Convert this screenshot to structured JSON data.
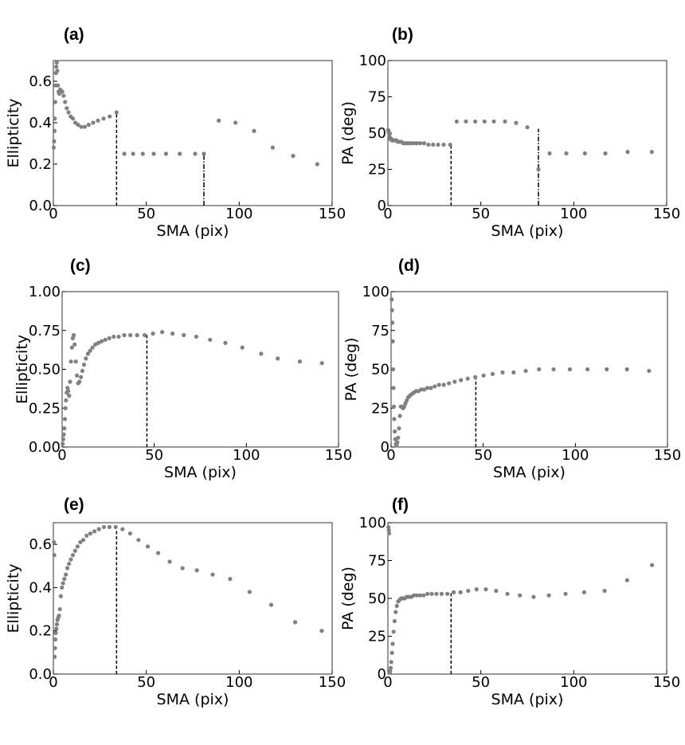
{
  "figure": {
    "title": ""
  },
  "chart_data": [
    {
      "id": "a",
      "type": "scatter",
      "panel_label": "(a)",
      "xlabel": "SMA (pix)",
      "ylabel": "Ellipticity",
      "xlim": [
        0,
        150
      ],
      "ylim": [
        0,
        0.7
      ],
      "xticks": [
        0,
        50,
        100,
        150
      ],
      "xtick_labels": [
        "0",
        "50",
        "100",
        "150"
      ],
      "yticks": [
        0,
        0.2,
        0.4,
        0.6
      ],
      "ytick_labels": [
        "0.0",
        "0.2",
        "0.4",
        "0.6"
      ],
      "marker_color": "#808080",
      "x": [
        0.2,
        0.4,
        0.6,
        0.8,
        1.0,
        1.2,
        1.4,
        1.6,
        1.8,
        2.1,
        2.4,
        2.8,
        3.2,
        3.7,
        4.2,
        4.8,
        5.5,
        6.3,
        7.2,
        8.2,
        9.3,
        10.5,
        11.8,
        13.3,
        15.0,
        16.9,
        19.0,
        21.4,
        24.0,
        27.0,
        30.3,
        34.0,
        38.2,
        42.9,
        48.1,
        54.0,
        60.6,
        68.0,
        76.3,
        81.0,
        89.0,
        98.0,
        108.0,
        118.0,
        129.0,
        142.0
      ],
      "y": [
        0.28,
        0.31,
        0.36,
        0.42,
        0.5,
        0.58,
        0.64,
        0.67,
        0.69,
        0.65,
        0.58,
        0.55,
        0.54,
        0.56,
        0.55,
        0.55,
        0.53,
        0.5,
        0.47,
        0.45,
        0.43,
        0.42,
        0.4,
        0.39,
        0.38,
        0.38,
        0.39,
        0.4,
        0.41,
        0.42,
        0.43,
        0.45,
        0.25,
        0.25,
        0.25,
        0.25,
        0.25,
        0.25,
        0.25,
        0.25,
        0.41,
        0.4,
        0.36,
        0.28,
        0.24,
        0.2
      ],
      "vlines": [
        {
          "x": 34,
          "style": "dashed",
          "ymax": 0.45
        },
        {
          "x": 81,
          "style": "dashdot",
          "ymax": 0.25
        }
      ]
    },
    {
      "id": "b",
      "type": "scatter",
      "panel_label": "(b)",
      "xlabel": "SMA (pix)",
      "ylabel": "PA (deg)",
      "xlim": [
        0,
        150
      ],
      "ylim": [
        0,
        100
      ],
      "xticks": [
        0,
        50,
        100,
        150
      ],
      "xtick_labels": [
        "0",
        "50",
        "100",
        "150"
      ],
      "yticks": [
        0,
        25,
        50,
        75,
        100
      ],
      "ytick_labels": [
        "0",
        "25",
        "50",
        "75",
        "100"
      ],
      "marker_color": "#808080",
      "x": [
        0.2,
        0.4,
        0.6,
        0.8,
        1.0,
        1.2,
        1.5,
        1.8,
        2.2,
        2.7,
        3.2,
        3.8,
        4.5,
        5.3,
        6.2,
        7.2,
        8.3,
        9.5,
        10.8,
        12.2,
        13.8,
        15.5,
        17.4,
        19.5,
        21.8,
        24.3,
        27.0,
        30.0,
        33.5,
        37.0,
        42.0,
        47.0,
        52.0,
        57.0,
        63.0,
        69.0,
        75.0,
        81.0,
        87.0,
        96.0,
        106.0,
        117.0,
        129.0,
        142.0
      ],
      "y": [
        52,
        51,
        50,
        49,
        47,
        46,
        46,
        46,
        45,
        45,
        45,
        45,
        45,
        44,
        44,
        44,
        43,
        43,
        43,
        43,
        43,
        43,
        43,
        43,
        42,
        42,
        42,
        42,
        42,
        58,
        58,
        58,
        58,
        58,
        58,
        57,
        54,
        25,
        36,
        36,
        36,
        36,
        37,
        37
      ],
      "vlines": [
        {
          "x": 34,
          "style": "dashed",
          "ymax": 42
        },
        {
          "x": 81,
          "style": "dashdot",
          "ymax": 53
        }
      ]
    },
    {
      "id": "c",
      "type": "scatter",
      "panel_label": "(c)",
      "xlabel": "SMA (pix)",
      "ylabel": "Ellipticity",
      "xlim": [
        0,
        150
      ],
      "ylim": [
        0,
        1.0
      ],
      "xticks": [
        0,
        50,
        100,
        150
      ],
      "xtick_labels": [
        "0",
        "50",
        "100",
        "150"
      ],
      "yticks": [
        0,
        0.25,
        0.5,
        0.75,
        1.0
      ],
      "ytick_labels": [
        "0.00",
        "0.25",
        "0.50",
        "0.75",
        "1.00"
      ],
      "marker_color": "#808080",
      "x": [
        0.3,
        0.6,
        0.9,
        1.2,
        1.5,
        1.8,
        2.1,
        2.5,
        2.9,
        3.3,
        3.8,
        4.3,
        4.8,
        5.3,
        5.8,
        6.3,
        6.8,
        7.4,
        8.0,
        8.7,
        9.4,
        10.2,
        11.0,
        11.9,
        12.9,
        14.0,
        15.2,
        16.5,
        18.0,
        19.6,
        21.4,
        23.4,
        25.6,
        28.0,
        30.7,
        33.7,
        37.0,
        40.7,
        44.8,
        49.3,
        54.3,
        59.9,
        66.0,
        72.8,
        80.3,
        88.6,
        97.8,
        108.0,
        117.0,
        129.0,
        141.0
      ],
      "y": [
        0.02,
        0.05,
        0.08,
        0.12,
        0.18,
        0.25,
        0.3,
        0.35,
        0.38,
        0.36,
        0.33,
        0.42,
        0.55,
        0.64,
        0.7,
        0.72,
        0.66,
        0.55,
        0.46,
        0.41,
        0.42,
        0.45,
        0.49,
        0.53,
        0.57,
        0.6,
        0.62,
        0.64,
        0.66,
        0.67,
        0.68,
        0.69,
        0.7,
        0.71,
        0.71,
        0.72,
        0.72,
        0.72,
        0.72,
        0.73,
        0.74,
        0.73,
        0.72,
        0.71,
        0.69,
        0.67,
        0.64,
        0.6,
        0.57,
        0.55,
        0.54
      ],
      "vlines": [
        {
          "x": 46,
          "style": "dashed",
          "ymax": 0.73
        }
      ]
    },
    {
      "id": "d",
      "type": "scatter",
      "panel_label": "(d)",
      "xlabel": "SMA (pix)",
      "ylabel": "PA (deg)",
      "xlim": [
        0,
        150
      ],
      "ylim": [
        0,
        100
      ],
      "xticks": [
        0,
        50,
        100,
        150
      ],
      "xtick_labels": [
        "0",
        "50",
        "100",
        "150"
      ],
      "yticks": [
        0,
        25,
        50,
        75,
        100
      ],
      "ytick_labels": [
        "0",
        "25",
        "50",
        "75",
        "100"
      ],
      "marker_color": "#808080",
      "x": [
        0.3,
        0.5,
        0.7,
        0.9,
        1.1,
        1.3,
        1.5,
        1.7,
        2.0,
        2.3,
        2.6,
        3.0,
        3.4,
        3.8,
        4.3,
        4.8,
        5.3,
        5.9,
        6.5,
        7.1,
        7.8,
        8.5,
        9.3,
        10.2,
        11.2,
        12.3,
        13.5,
        14.8,
        16.3,
        17.9,
        19.7,
        21.6,
        23.7,
        26.0,
        28.6,
        31.4,
        34.5,
        37.9,
        41.6,
        45.7,
        50.2,
        55.1,
        60.5,
        66.5,
        73.1,
        80.3,
        88.2,
        97.0,
        106.6,
        117.0,
        128.0,
        140.0
      ],
      "y": [
        95,
        88,
        80,
        68,
        50,
        38,
        26,
        18,
        10,
        5,
        2,
        1,
        3,
        6,
        12,
        20,
        26,
        26,
        25,
        26,
        28,
        30,
        32,
        33,
        34,
        35,
        36,
        36,
        37,
        37,
        38,
        38,
        39,
        40,
        40,
        41,
        42,
        43,
        44,
        45,
        46,
        47,
        48,
        48,
        49,
        50,
        50,
        50,
        50,
        50,
        50,
        49
      ],
      "vlines": [
        {
          "x": 46,
          "style": "dashed",
          "ymax": 45
        }
      ]
    },
    {
      "id": "e",
      "type": "scatter",
      "panel_label": "(e)",
      "xlabel": "SMA (pix)",
      "ylabel": "Ellipticity",
      "xlim": [
        0,
        150
      ],
      "ylim": [
        0,
        0.7
      ],
      "xticks": [
        0,
        50,
        100,
        150
      ],
      "xtick_labels": [
        "0",
        "50",
        "100",
        "150"
      ],
      "yticks": [
        0,
        0.2,
        0.4,
        0.6
      ],
      "ytick_labels": [
        "0.0",
        "0.2",
        "0.4",
        "0.6"
      ],
      "marker_color": "#808080",
      "x": [
        0.3,
        0.5,
        0.7,
        0.9,
        1.1,
        1.3,
        1.6,
        1.9,
        2.2,
        2.6,
        3.0,
        3.5,
        4.0,
        4.6,
        5.2,
        5.9,
        6.7,
        7.5,
        8.4,
        9.4,
        10.5,
        11.7,
        13.0,
        14.5,
        16.1,
        17.9,
        19.9,
        22.1,
        24.5,
        27.2,
        30.2,
        33.5,
        37.2,
        41.3,
        45.8,
        50.8,
        56.4,
        62.6,
        69.5,
        77.2,
        85.7,
        95.1,
        105.6,
        117.2,
        130.1,
        144.4
      ],
      "y": [
        0.61,
        0.55,
        0.08,
        0.12,
        0.16,
        0.19,
        0.21,
        0.23,
        0.25,
        0.26,
        0.27,
        0.3,
        0.36,
        0.4,
        0.42,
        0.44,
        0.46,
        0.49,
        0.51,
        0.53,
        0.55,
        0.57,
        0.59,
        0.61,
        0.62,
        0.64,
        0.65,
        0.66,
        0.67,
        0.68,
        0.68,
        0.68,
        0.67,
        0.65,
        0.62,
        0.59,
        0.56,
        0.52,
        0.49,
        0.48,
        0.46,
        0.44,
        0.38,
        0.32,
        0.24,
        0.2
      ],
      "vlines": [
        {
          "x": 34,
          "style": "dashed",
          "ymax": 0.67
        }
      ]
    },
    {
      "id": "f",
      "type": "scatter",
      "panel_label": "(f)",
      "xlabel": "SMA (pix)",
      "ylabel": "PA (deg)",
      "xlim": [
        0,
        150
      ],
      "ylim": [
        0,
        100
      ],
      "xticks": [
        0,
        50,
        100,
        150
      ],
      "xtick_labels": [
        "0",
        "50",
        "100",
        "150"
      ],
      "yticks": [
        0,
        25,
        50,
        75,
        100
      ],
      "ytick_labels": [
        "0",
        "25",
        "50",
        "75",
        "100"
      ],
      "marker_color": "#808080",
      "x": [
        0.3,
        0.5,
        0.7,
        0.9,
        1.2,
        1.5,
        1.8,
        2.2,
        2.6,
        3.1,
        3.6,
        4.2,
        4.8,
        5.5,
        6.3,
        7.1,
        8.0,
        9.0,
        10.1,
        11.3,
        12.6,
        14.0,
        15.6,
        17.3,
        19.2,
        21.3,
        23.6,
        26.1,
        28.9,
        32.0,
        35.4,
        39.1,
        43.2,
        47.7,
        52.7,
        58.2,
        64.3,
        71.0,
        78.4,
        86.6,
        95.6,
        105.6,
        116.6,
        128.7,
        142.1
      ],
      "y": [
        97,
        95,
        93,
        1,
        2,
        4,
        8,
        14,
        20,
        28,
        35,
        41,
        45,
        48,
        49,
        50,
        50,
        50,
        51,
        51,
        51,
        52,
        52,
        52,
        52,
        53,
        53,
        53,
        53,
        53,
        54,
        54,
        55,
        56,
        56,
        55,
        53,
        52,
        51,
        52,
        53,
        54,
        55,
        62,
        72
      ],
      "vlines": [
        {
          "x": 34,
          "style": "dashed",
          "ymax": 54
        }
      ]
    }
  ]
}
